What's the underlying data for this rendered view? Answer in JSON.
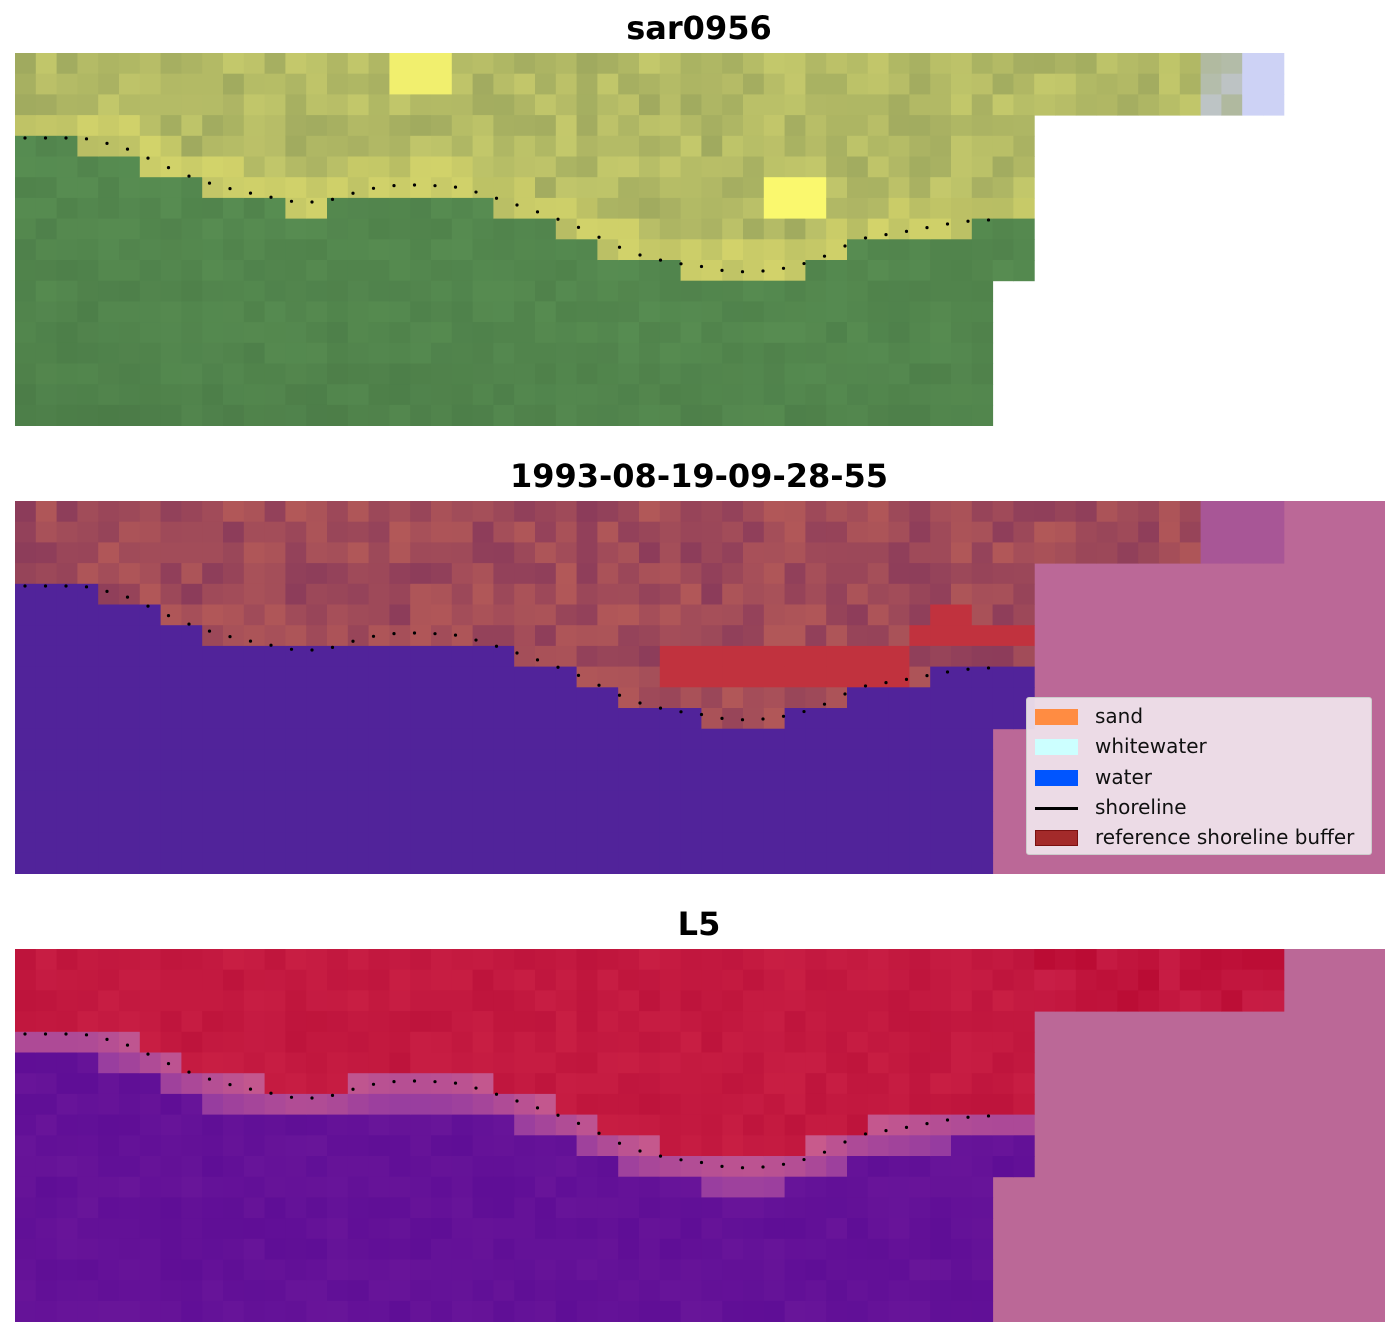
{
  "panels": [
    {
      "title": "sar0956"
    },
    {
      "title": "1993-08-19-09-28-55"
    },
    {
      "title": "L5"
    }
  ],
  "legend": {
    "items": [
      {
        "label": "sand",
        "color": "#ff8c42",
        "kind": "patch"
      },
      {
        "label": "whitewater",
        "color": "#ccffff",
        "kind": "patch"
      },
      {
        "label": "water",
        "color": "#0055ff",
        "kind": "patch"
      },
      {
        "label": "shoreline",
        "color": "#000000",
        "kind": "line"
      },
      {
        "label": "reference shoreline buffer",
        "color": "#a32a2a",
        "kind": "patch"
      }
    ]
  },
  "colors": {
    "masked_bg": "#bb6897",
    "water_class": "#51239a",
    "buffer_red": "#c1323e"
  }
}
